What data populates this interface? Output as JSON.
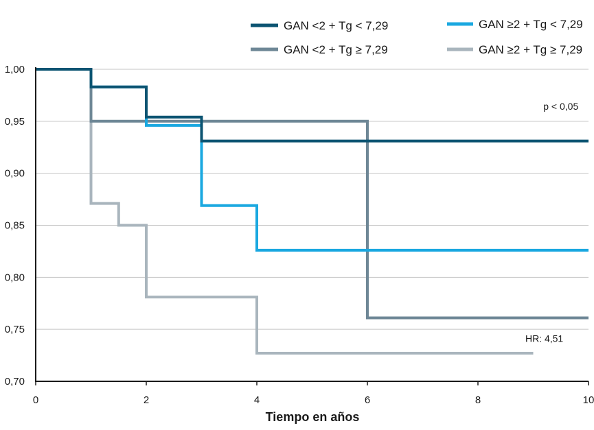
{
  "chart_data": {
    "type": "line",
    "step": true,
    "xlabel": "Tiempo en años",
    "ylabel": "",
    "xlim": [
      0,
      10
    ],
    "ylim": [
      0.7,
      1.0
    ],
    "xticks": [
      0,
      2,
      4,
      6,
      8,
      10
    ],
    "xtick_labels": [
      "0",
      "2",
      "4",
      "6",
      "8",
      "10"
    ],
    "yticks": [
      0.7,
      0.75,
      0.8,
      0.85,
      0.9,
      0.95,
      1.0
    ],
    "ytick_labels": [
      "0,70",
      "0,75",
      "0,80",
      "0,85",
      "0,90",
      "0,95",
      "1,00"
    ],
    "grid": "horizontal",
    "legend_position": "top",
    "series": [
      {
        "name": "GAN <2 + Tg < 7,29",
        "color": "#0c5472",
        "x": [
          0,
          1,
          1,
          2,
          2,
          3,
          3,
          10
        ],
        "y": [
          1.0,
          1.0,
          0.983,
          0.983,
          0.954,
          0.954,
          0.931,
          0.931
        ]
      },
      {
        "name": "GAN ≥2 + Tg < 7,29",
        "color": "#1aa8e0",
        "x": [
          0,
          1,
          1,
          2,
          2,
          3,
          3,
          4,
          4,
          10
        ],
        "y": [
          1.0,
          1.0,
          0.983,
          0.983,
          0.946,
          0.946,
          0.869,
          0.869,
          0.826,
          0.826
        ]
      },
      {
        "name": "GAN <2 + Tg ≥ 7,29",
        "color": "#6e8796",
        "x": [
          0,
          1,
          1,
          6,
          6,
          10
        ],
        "y": [
          1.0,
          1.0,
          0.95,
          0.95,
          0.761,
          0.761
        ]
      },
      {
        "name": "GAN ≥2 + Tg ≥ 7,29",
        "color": "#a9b5bd",
        "x": [
          0,
          1,
          1,
          1.5,
          1.5,
          2,
          2,
          4,
          4,
          9
        ],
        "y": [
          1.0,
          1.0,
          0.871,
          0.871,
          0.85,
          0.85,
          0.781,
          0.781,
          0.727,
          0.727
        ]
      }
    ],
    "annotations": [
      {
        "text": "p < 0,05",
        "x": 9.5,
        "y": 0.961
      },
      {
        "text": "HR: 4,51",
        "x": 9.2,
        "y": 0.738
      }
    ]
  }
}
